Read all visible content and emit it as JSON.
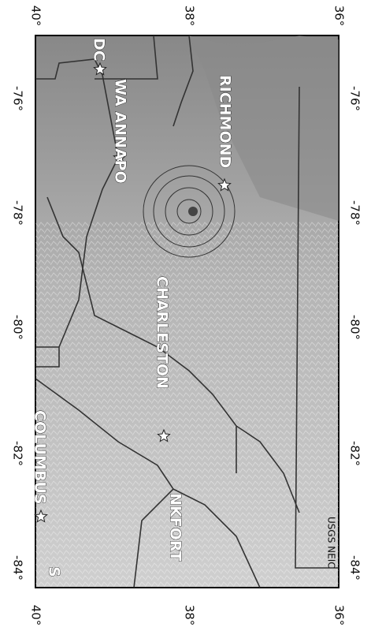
{
  "map": {
    "lat_labels": [
      "40°",
      "38°",
      "36°"
    ],
    "lon_labels": [
      "-76°",
      "-78°",
      "-80°",
      "-82°",
      "-84°"
    ],
    "cities": [
      "DC",
      "WA ANNAPO",
      "RICHMOND",
      "CHARLESTON",
      "COLUMBUS",
      "NKFORT",
      "S"
    ],
    "credit": "USGS NEIC"
  }
}
